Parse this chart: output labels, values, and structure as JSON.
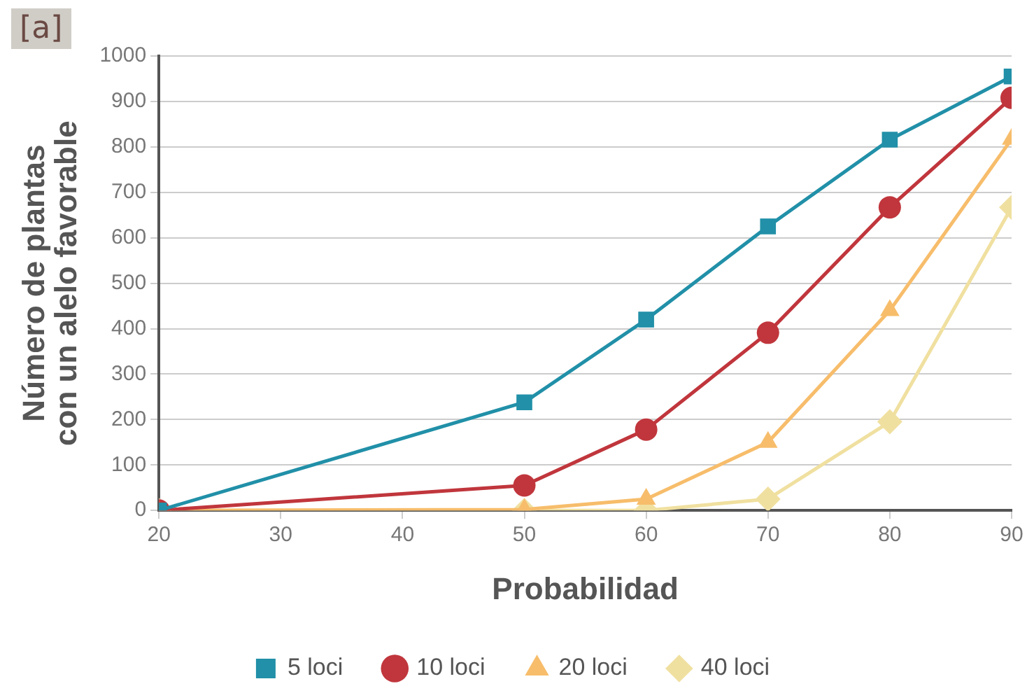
{
  "chart_data": {
    "type": "line",
    "xlabel": "Probabilidad",
    "ylabel": "Número de plantas\ncon un alelo favorable",
    "annotations": [
      "[a]"
    ],
    "x": [
      20,
      50,
      60,
      70,
      80,
      90
    ],
    "xlim": [
      20,
      90
    ],
    "xticks": [
      20,
      30,
      40,
      50,
      60,
      70,
      80,
      90
    ],
    "ylim": [
      0,
      1000
    ],
    "yticks": [
      0,
      100,
      200,
      300,
      400,
      500,
      600,
      700,
      800,
      900,
      1000
    ],
    "grid": "y",
    "legend": "bottom",
    "line_style": "solid",
    "series": [
      {
        "name": "5 loci",
        "color": "#2190a8",
        "marker": "square",
        "values": [
          0,
          238,
          420,
          625,
          816,
          955
        ]
      },
      {
        "name": "10 loci",
        "color": "#c0363c",
        "marker": "circle",
        "values": [
          0,
          55,
          178,
          391,
          667,
          908
        ]
      },
      {
        "name": "20 loci",
        "color": "#f7bd6b",
        "marker": "triangle",
        "values": [
          0,
          2,
          25,
          150,
          440,
          817
        ]
      },
      {
        "name": "40 loci",
        "color": "#f0e0a0",
        "marker": "diamond",
        "values": [
          0,
          0,
          0,
          25,
          195,
          667
        ]
      }
    ]
  }
}
